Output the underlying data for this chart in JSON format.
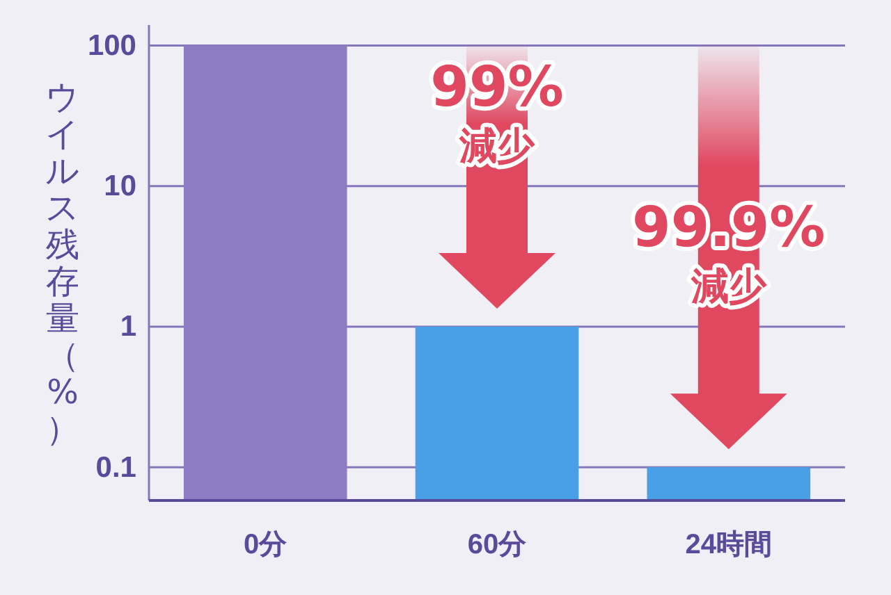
{
  "chart_data": {
    "type": "bar",
    "categories": [
      "0分",
      "60分",
      "24時間"
    ],
    "values": [
      100,
      1,
      0.1
    ],
    "colors": [
      "#8e7cc3",
      "#4aa0e6",
      "#4aa0e6"
    ],
    "ylabel": "ウイルス残存量（%）",
    "log": true,
    "ylim": [
      0.058,
      140
    ],
    "yticks": [
      0.1,
      1,
      10,
      100
    ],
    "grid": "y",
    "annotations": [
      {
        "text": "99%\n減少",
        "x": "60分",
        "y": 1
      },
      {
        "text": "99.9%\n減少",
        "x": "24時間",
        "y": 0.1
      }
    ]
  }
}
